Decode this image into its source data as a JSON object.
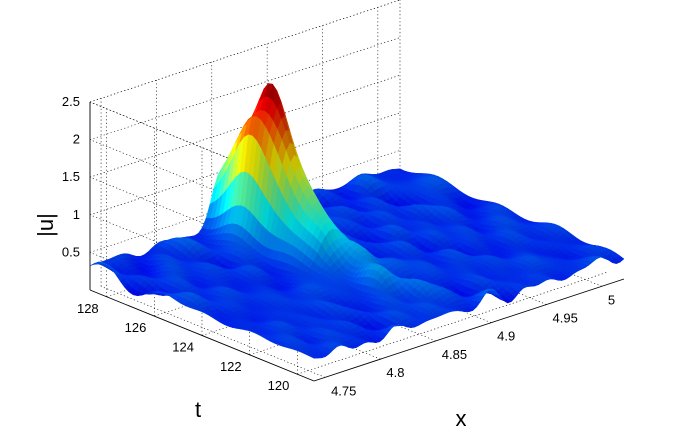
{
  "chart_data": {
    "type": "surface",
    "title": "",
    "xlabel": "x",
    "ylabel": "t",
    "zlabel": "|u|",
    "x_ticks": [
      "4.75",
      "4.8",
      "4.85",
      "4.9",
      "4.95",
      "5"
    ],
    "t_ticks": [
      "120",
      "122",
      "124",
      "126",
      "128"
    ],
    "z_ticks": [
      "0.5",
      "1",
      "1.5",
      "2",
      "2.5"
    ],
    "xlim": [
      4.74,
      5.02
    ],
    "tlim": [
      119.3,
      128.7
    ],
    "zlim": [
      0,
      2.5
    ],
    "grid": true,
    "colormap": "jet",
    "background_level": 0.3,
    "background_noise_amplitude": 0.15,
    "peaks": [
      {
        "x": 4.853,
        "t": 127.3,
        "z": 2.3
      },
      {
        "x": 4.868,
        "t": 127.0,
        "z": 2.35
      }
    ],
    "main_hump": {
      "x": 4.862,
      "t": 127.0,
      "z": 1.7
    }
  }
}
